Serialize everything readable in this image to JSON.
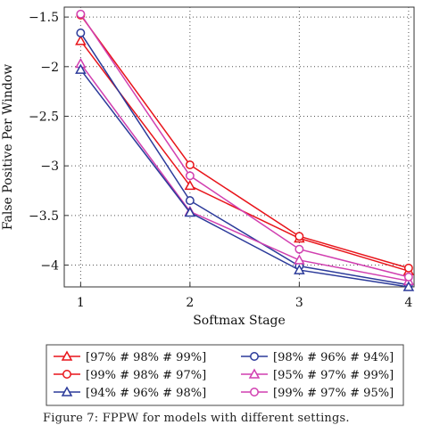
{
  "chart_data": {
    "type": "line",
    "xlabel": "Softmax Stage",
    "ylabel": "False Positive Per Window",
    "x": [
      1,
      2,
      3,
      4
    ],
    "xticks": [
      "1",
      "2",
      "3",
      "4"
    ],
    "yticks": [
      "−1.5",
      "−2",
      "−2.5",
      "−3",
      "−3.5",
      "−4"
    ],
    "ytick_values": [
      -1.5,
      -2,
      -2.5,
      -3,
      -3.5,
      -4
    ],
    "xlim": [
      0.85,
      4.05
    ],
    "ylim": [
      -4.22,
      -1.4
    ],
    "grid": true,
    "legend_position": "bottom",
    "series": [
      {
        "name": "[97% # 98% # 99%]",
        "color": "#e8141a",
        "marker": "triangle",
        "values": [
          -1.74,
          -3.2,
          -3.73,
          -4.06
        ]
      },
      {
        "name": "[98% # 96% # 94%]",
        "color": "#2b3a9a",
        "marker": "circle",
        "values": [
          -1.66,
          -3.35,
          -4.01,
          -4.2
        ]
      },
      {
        "name": "[99% # 98% # 97%]",
        "color": "#e8141a",
        "marker": "circle",
        "values": [
          -1.48,
          -2.99,
          -3.71,
          -4.03
        ]
      },
      {
        "name": "[95% # 97% # 99%]",
        "color": "#d13fb0",
        "marker": "triangle",
        "values": [
          -1.97,
          -3.46,
          -3.95,
          -4.16
        ]
      },
      {
        "name": "[94% # 96% # 98%]",
        "color": "#2b3a9a",
        "marker": "triangle",
        "values": [
          -2.03,
          -3.47,
          -4.05,
          -4.22
        ]
      },
      {
        "name": "[99% # 97% # 95%]",
        "color": "#d13fb0",
        "marker": "circle",
        "values": [
          -1.47,
          -3.1,
          -3.84,
          -4.12
        ]
      }
    ]
  },
  "caption": "Figure 7: FPPW for models with different settings."
}
